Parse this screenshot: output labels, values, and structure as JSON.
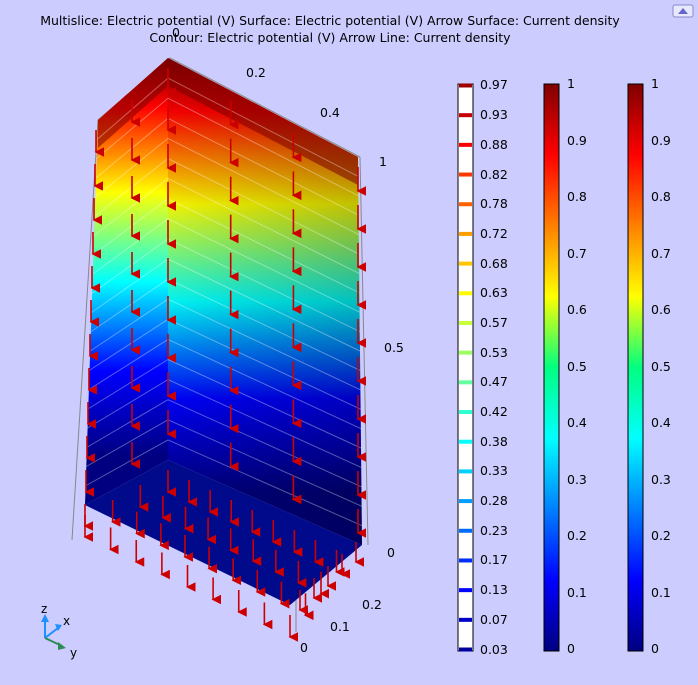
{
  "title": {
    "line1": "Multislice: Electric potential (V)  Surface: Electric potential (V)  Arrow Surface: Current density",
    "line2": "Contour: Electric potential (V)  Arrow Line: Current density"
  },
  "axes": {
    "top_ticks": [
      "0",
      "0.2",
      "0.4"
    ],
    "vertical_ticks": [
      "1",
      "0.5",
      "0"
    ],
    "bottom_ticks": [
      "0.2",
      "0.1",
      "0"
    ],
    "triad": {
      "z": "z",
      "x": "x",
      "y": "y"
    }
  },
  "colorbars": {
    "contour_levels": [
      "0.97",
      "0.93",
      "0.88",
      "0.82",
      "0.78",
      "0.72",
      "0.68",
      "0.63",
      "0.57",
      "0.53",
      "0.47",
      "0.42",
      "0.38",
      "0.33",
      "0.28",
      "0.23",
      "0.17",
      "0.13",
      "0.07",
      "0.03"
    ],
    "bar2_ticks": [
      "1",
      "0.9",
      "0.8",
      "0.7",
      "0.6",
      "0.5",
      "0.4",
      "0.3",
      "0.2",
      "0.1",
      "0"
    ],
    "bar3_ticks": [
      "1",
      "0.9",
      "0.8",
      "0.7",
      "0.6",
      "0.5",
      "0.4",
      "0.3",
      "0.2",
      "0.1",
      "0"
    ]
  },
  "colors": {
    "background": "#ccccff",
    "arrow": "#cc0000"
  },
  "icons": {
    "corner": "view-cube-icon"
  }
}
